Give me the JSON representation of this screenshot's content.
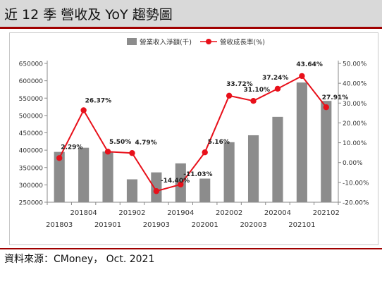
{
  "header": {
    "title": "近 12 季  營收及 YoY 趨勢圖"
  },
  "source": {
    "text": "資料來源：CMoney，  Oct. 2021"
  },
  "chart_data": {
    "type": "bar",
    "categories": [
      "201803",
      "201804",
      "201901",
      "201902",
      "201903",
      "201904",
      "202001",
      "202002",
      "202003",
      "202004",
      "202101",
      "202102"
    ],
    "series": [
      {
        "name": "營業收入淨額(千)",
        "type": "bar",
        "color": "#8c8c8c",
        "values": [
          395000,
          407000,
          396000,
          316000,
          336000,
          362000,
          318000,
          423000,
          443000,
          496000,
          595000,
          542000
        ]
      },
      {
        "name": "營收成長率(%)",
        "type": "line",
        "color": "#e8101a",
        "values": [
          2.29,
          26.37,
          5.5,
          4.79,
          -14.4,
          -11.03,
          5.16,
          33.72,
          31.1,
          37.24,
          43.64,
          27.91
        ],
        "labels": [
          "2.29%",
          "26.37%",
          "5.50%",
          "4.79%",
          "-14.40%",
          "-11.03%",
          "5.16%",
          "33.72%",
          "31.10%",
          "37.24%",
          "43.64%",
          "27.91%"
        ]
      }
    ],
    "y_left": {
      "min": 250000,
      "max": 650000,
      "step": 50000,
      "ticks": [
        "250000",
        "300000",
        "350000",
        "400000",
        "450000",
        "500000",
        "550000",
        "600000",
        "650000"
      ]
    },
    "y_right": {
      "min": -20,
      "max": 50,
      "step": 10,
      "ticks": [
        "-20.00%",
        "-10.00%",
        "0.00%",
        "10.00%",
        "20.00%",
        "30.00%",
        "40.00%",
        "50.00%"
      ]
    },
    "x_labels_top": [
      "201804",
      "201902",
      "201904",
      "202002",
      "202004",
      "202102"
    ],
    "x_labels_bottom": [
      "201803",
      "201901",
      "201903",
      "202001",
      "202003",
      "202101"
    ],
    "legend": [
      "營業收入淨額(千)",
      "營收成長率(%)"
    ],
    "legend_position": "top",
    "grid": false
  }
}
